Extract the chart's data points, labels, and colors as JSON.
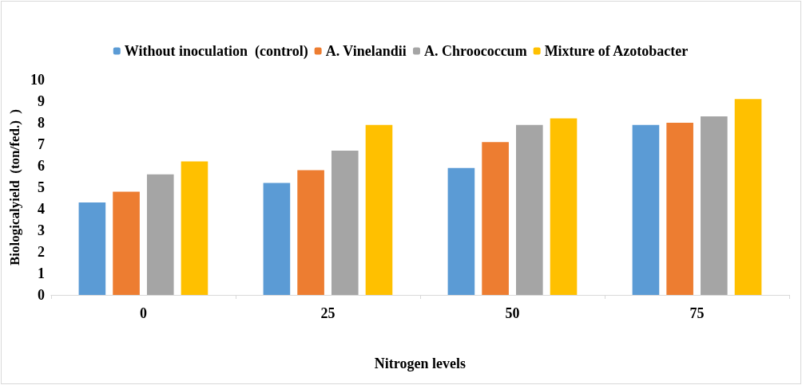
{
  "chart_data": {
    "type": "bar",
    "xlabel": "Nitrogen levels",
    "ylabel": "Biologicalyield  (ton/fed.)  )",
    "categories": [
      "0",
      "25",
      "50",
      "75"
    ],
    "series": [
      {
        "name": "Without inoculation  (control)",
        "color": "#5b9bd5",
        "values": [
          4.3,
          5.2,
          5.9,
          7.9
        ]
      },
      {
        "name": "A. Vinelandii",
        "color": "#ed7d31",
        "values": [
          4.8,
          5.8,
          7.1,
          8.0
        ]
      },
      {
        "name": "A. Chroococcum",
        "color": "#a5a5a5",
        "values": [
          5.6,
          6.7,
          7.9,
          8.3
        ]
      },
      {
        "name": "Mixture of Azotobacter",
        "color": "#ffc000",
        "values": [
          6.2,
          7.9,
          8.2,
          9.1
        ]
      }
    ],
    "ylim": [
      0,
      10
    ],
    "yticks": [
      0,
      1,
      2,
      3,
      4,
      5,
      6,
      7,
      8,
      9,
      10
    ],
    "grid": false,
    "legend": "top"
  }
}
